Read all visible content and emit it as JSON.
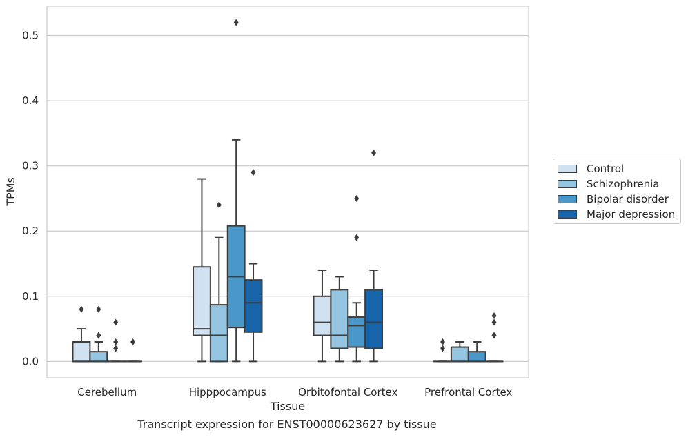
{
  "caption": "Transcript expression for ENST00000623627 by tissue",
  "chart_data": {
    "type": "box",
    "xlabel": "Tissue",
    "ylabel": "TPMs",
    "ylim": [
      -0.025,
      0.545
    ],
    "yticks": [
      0.0,
      0.1,
      0.2,
      0.3,
      0.4,
      0.5
    ],
    "ytick_labels": [
      "0.0",
      "0.1",
      "0.2",
      "0.3",
      "0.4",
      "0.5"
    ],
    "grid": "horizontal",
    "legend_position": "right",
    "categories": [
      "Cerebellum",
      "Hipppocampus",
      "Orbitofontal Cortex",
      "Prefrontal Cortex"
    ],
    "series": [
      {
        "name": "Control",
        "color": "#d0e1f2",
        "boxes": [
          {
            "whislo": 0.0,
            "q1": 0.0,
            "med": 0.0,
            "q3": 0.03,
            "whishi": 0.05,
            "fliers": [
              0.08
            ]
          },
          {
            "whislo": 0.0,
            "q1": 0.04,
            "med": 0.05,
            "q3": 0.145,
            "whishi": 0.28,
            "fliers": []
          },
          {
            "whislo": 0.0,
            "q1": 0.04,
            "med": 0.06,
            "q3": 0.1,
            "whishi": 0.14,
            "fliers": []
          },
          {
            "whislo": 0.0,
            "q1": 0.0,
            "med": 0.0,
            "q3": 0.0,
            "whishi": 0.0,
            "fliers": [
              0.02,
              0.03
            ]
          }
        ]
      },
      {
        "name": "Schizophrenia",
        "color": "#94c4df",
        "boxes": [
          {
            "whislo": 0.0,
            "q1": 0.0,
            "med": 0.0,
            "q3": 0.015,
            "whishi": 0.03,
            "fliers": [
              0.04,
              0.08
            ]
          },
          {
            "whislo": 0.0,
            "q1": 0.0,
            "med": 0.04,
            "q3": 0.087,
            "whishi": 0.19,
            "fliers": [
              0.24
            ]
          },
          {
            "whislo": 0.0,
            "q1": 0.02,
            "med": 0.04,
            "q3": 0.11,
            "whishi": 0.13,
            "fliers": []
          },
          {
            "whislo": 0.0,
            "q1": 0.0,
            "med": 0.0,
            "q3": 0.022,
            "whishi": 0.03,
            "fliers": []
          }
        ]
      },
      {
        "name": "Bipolar disorder",
        "color": "#4a98c9",
        "boxes": [
          {
            "whislo": 0.0,
            "q1": 0.0,
            "med": 0.0,
            "q3": 0.0,
            "whishi": 0.0,
            "fliers": [
              0.02,
              0.03,
              0.06
            ]
          },
          {
            "whislo": 0.0,
            "q1": 0.052,
            "med": 0.13,
            "q3": 0.208,
            "whishi": 0.34,
            "fliers": [
              0.52
            ]
          },
          {
            "whislo": 0.0,
            "q1": 0.022,
            "med": 0.055,
            "q3": 0.068,
            "whishi": 0.09,
            "fliers": [
              0.19,
              0.25
            ]
          },
          {
            "whislo": 0.0,
            "q1": 0.0,
            "med": 0.0,
            "q3": 0.015,
            "whishi": 0.03,
            "fliers": []
          }
        ]
      },
      {
        "name": "Major depression",
        "color": "#1764ab",
        "boxes": [
          {
            "whislo": 0.0,
            "q1": 0.0,
            "med": 0.0,
            "q3": 0.0,
            "whishi": 0.0,
            "fliers": [
              0.03
            ]
          },
          {
            "whislo": 0.0,
            "q1": 0.045,
            "med": 0.09,
            "q3": 0.125,
            "whishi": 0.15,
            "fliers": [
              0.29
            ]
          },
          {
            "whislo": 0.0,
            "q1": 0.02,
            "med": 0.06,
            "q3": 0.11,
            "whishi": 0.14,
            "fliers": [
              0.32
            ]
          },
          {
            "whislo": 0.0,
            "q1": 0.0,
            "med": 0.0,
            "q3": 0.0,
            "whishi": 0.0,
            "fliers": [
              0.04,
              0.06,
              0.07
            ]
          }
        ]
      }
    ]
  }
}
